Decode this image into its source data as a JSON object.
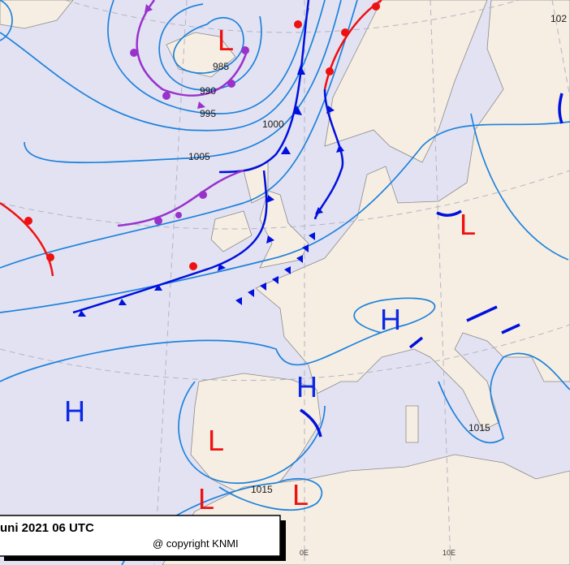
{
  "map": {
    "caption": "uni 2021 06 UTC",
    "copyright": "@ copyright KNMI",
    "longitudes": [
      "0E",
      "10E"
    ],
    "isobar_labels": [
      "985",
      "990",
      "995",
      "1000",
      "1005",
      "1015",
      "1015",
      "102"
    ],
    "pressure_centers": [
      "L",
      "L",
      "L",
      "L",
      "L",
      "H",
      "H",
      "H"
    ]
  }
}
